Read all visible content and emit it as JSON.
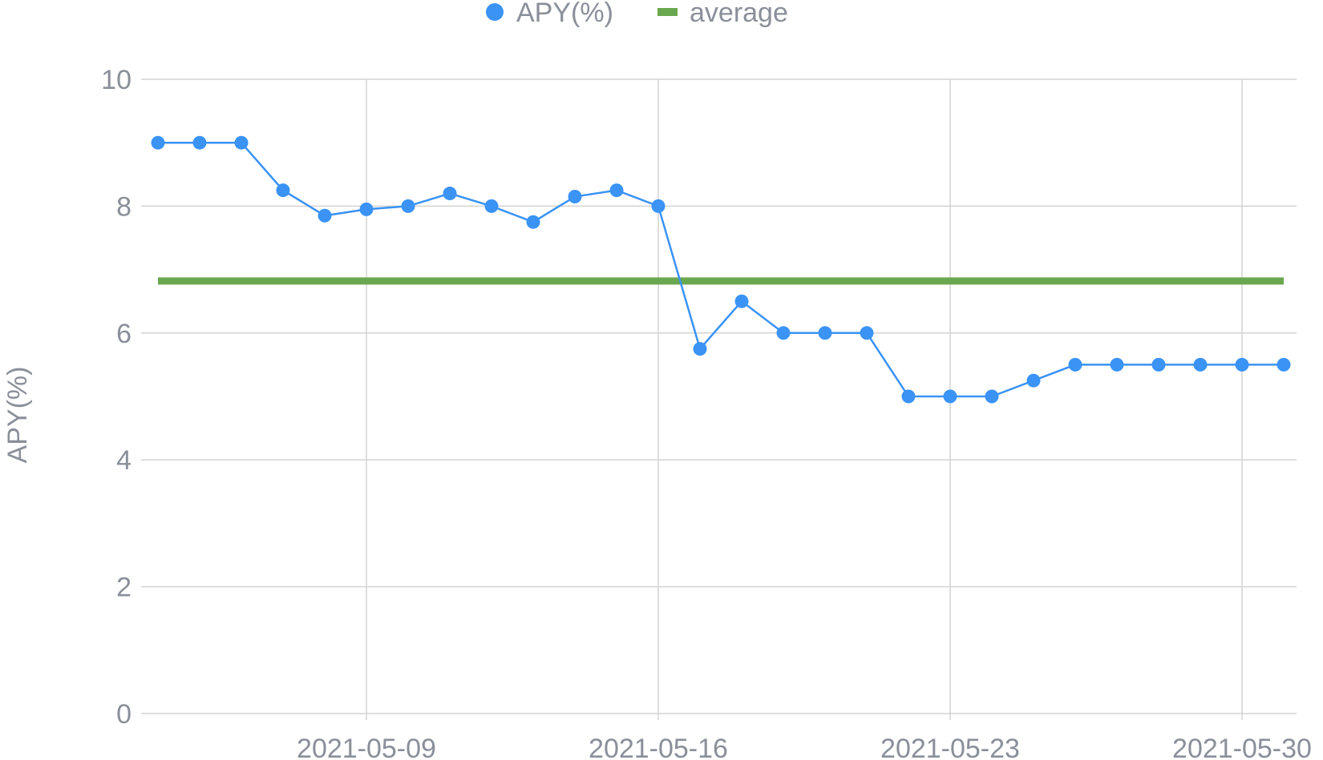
{
  "chart_data": {
    "type": "line",
    "ylabel": "APY(%)",
    "ylim": [
      0,
      10
    ],
    "y_ticks": [
      "0",
      "2",
      "4",
      "6",
      "8",
      "10"
    ],
    "x_ticks": [
      "2021-05-09",
      "2021-05-16",
      "2021-05-23",
      "2021-05-30"
    ],
    "legend_position": "top-center",
    "grid": true,
    "series": [
      {
        "name": "APY(%)",
        "kind": "line-with-markers",
        "color": "#3a93f5",
        "points": [
          {
            "x": "2021-05-04",
            "y": 9.0
          },
          {
            "x": "2021-05-05",
            "y": 9.0
          },
          {
            "x": "2021-05-06",
            "y": 9.0
          },
          {
            "x": "2021-05-07",
            "y": 8.25
          },
          {
            "x": "2021-05-08",
            "y": 7.85
          },
          {
            "x": "2021-05-09",
            "y": 7.95
          },
          {
            "x": "2021-05-10",
            "y": 8.0
          },
          {
            "x": "2021-05-11",
            "y": 8.2
          },
          {
            "x": "2021-05-12",
            "y": 8.0
          },
          {
            "x": "2021-05-13",
            "y": 7.75
          },
          {
            "x": "2021-05-14",
            "y": 8.15
          },
          {
            "x": "2021-05-15",
            "y": 8.25
          },
          {
            "x": "2021-05-16",
            "y": 8.0
          },
          {
            "x": "2021-05-17",
            "y": 5.75
          },
          {
            "x": "2021-05-18",
            "y": 6.5
          },
          {
            "x": "2021-05-19",
            "y": 6.0
          },
          {
            "x": "2021-05-20",
            "y": 6.0
          },
          {
            "x": "2021-05-21",
            "y": 6.0
          },
          {
            "x": "2021-05-22",
            "y": 5.0
          },
          {
            "x": "2021-05-23",
            "y": 5.0
          },
          {
            "x": "2021-05-24",
            "y": 5.0
          },
          {
            "x": "2021-05-25",
            "y": 5.25
          },
          {
            "x": "2021-05-26",
            "y": 5.5
          },
          {
            "x": "2021-05-27",
            "y": 5.5
          },
          {
            "x": "2021-05-28",
            "y": 5.5
          },
          {
            "x": "2021-05-29",
            "y": 5.5
          },
          {
            "x": "2021-05-30",
            "y": 5.5
          },
          {
            "x": "2021-05-31",
            "y": 5.5
          }
        ]
      },
      {
        "name": "average",
        "kind": "line",
        "color": "#6aa84f",
        "points": [
          {
            "x": "2021-05-04",
            "y": 6.82
          },
          {
            "x": "2021-05-31",
            "y": 6.82
          }
        ]
      }
    ]
  }
}
